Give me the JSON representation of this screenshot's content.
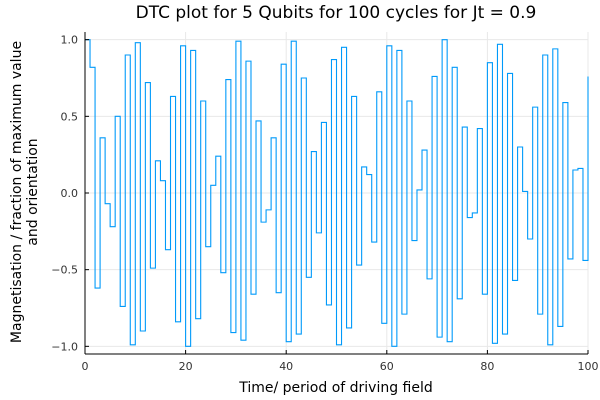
{
  "chart_data": {
    "type": "line",
    "style": "step",
    "title": "DTC plot for 5 Qubits for 100 cycles for Jt = 0.9",
    "xlabel": "Time/ period of driving field",
    "ylabel_lines": [
      "Magnetisation / fraction of maximum value",
      "and orientation"
    ],
    "xlim": [
      0,
      100
    ],
    "ylim": [
      -1.05,
      1.05
    ],
    "xticks": [
      0,
      20,
      40,
      60,
      80,
      100
    ],
    "yticks": [
      -1.0,
      -0.5,
      0.0,
      0.5,
      1.0
    ],
    "xtick_labels": [
      "0",
      "20",
      "40",
      "60",
      "80",
      "100"
    ],
    "ytick_labels": [
      "−1.0",
      "−0.5",
      "0.0",
      "0.5",
      "1.0"
    ],
    "grid": true,
    "legend": "none",
    "series_color": "#009AFA",
    "series": [
      {
        "x": [
          0,
          1,
          2,
          3,
          4,
          5,
          6,
          7,
          8,
          9,
          10,
          11,
          12,
          13,
          14,
          15,
          16,
          17,
          18,
          19,
          20,
          21,
          22,
          23,
          24,
          25,
          26,
          27,
          28,
          29,
          30,
          31,
          32,
          33,
          34,
          35,
          36,
          37,
          38,
          39,
          40,
          41,
          42,
          43,
          44,
          45,
          46,
          47,
          48,
          49,
          50,
          51,
          52,
          53,
          54,
          55,
          56,
          57,
          58,
          59,
          60,
          61,
          62,
          63,
          64,
          65,
          66,
          67,
          68,
          69,
          70,
          71,
          72,
          73,
          74,
          75,
          76,
          77,
          78,
          79,
          80,
          81,
          82,
          83,
          84,
          85,
          86,
          87,
          88,
          89,
          90,
          91,
          92,
          93,
          94,
          95,
          96,
          97,
          98,
          99,
          100
        ],
        "y": [
          1.0,
          0.82,
          -0.62,
          0.36,
          -0.07,
          -0.22,
          0.5,
          -0.74,
          0.9,
          -0.99,
          0.98,
          -0.9,
          0.72,
          -0.49,
          0.21,
          0.08,
          -0.37,
          0.63,
          -0.84,
          0.96,
          -1.0,
          0.93,
          -0.82,
          0.6,
          -0.35,
          0.05,
          0.24,
          -0.52,
          0.74,
          -0.91,
          0.99,
          -0.96,
          0.86,
          -0.66,
          0.47,
          -0.19,
          -0.11,
          0.36,
          -0.65,
          0.84,
          -0.97,
          0.99,
          -0.92,
          0.75,
          -0.55,
          0.27,
          -0.26,
          0.46,
          -0.73,
          0.87,
          -0.99,
          0.95,
          -0.88,
          0.63,
          -0.47,
          0.17,
          0.12,
          -0.32,
          0.66,
          -0.85,
          0.96,
          -1.0,
          0.93,
          -0.79,
          0.6,
          -0.31,
          0.02,
          0.28,
          -0.56,
          0.76,
          -0.94,
          1.0,
          -0.97,
          0.82,
          -0.69,
          0.43,
          -0.16,
          -0.13,
          0.42,
          -0.66,
          0.85,
          -0.98,
          0.97,
          -0.92,
          0.78,
          -0.57,
          0.3,
          0.01,
          -0.3,
          0.56,
          -0.79,
          0.9,
          -0.99,
          0.94,
          -0.87,
          0.59,
          -0.43,
          0.15,
          0.16,
          -0.44,
          0.76
        ]
      }
    ]
  }
}
